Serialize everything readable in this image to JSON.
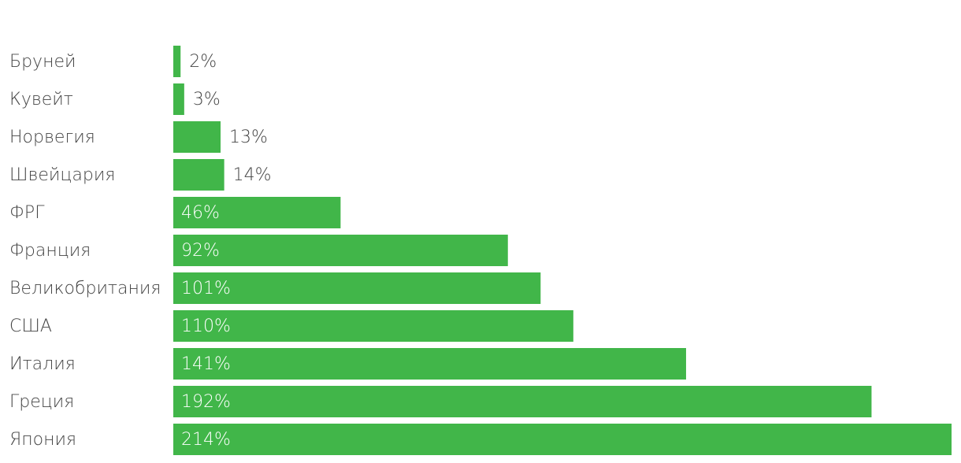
{
  "chart_data": {
    "type": "bar",
    "orientation": "horizontal",
    "categories": [
      "Бруней",
      "Кувейт",
      "Норвегия",
      "Швейцария",
      "ФРГ",
      "Франция",
      "Великобритания",
      "США",
      "Италия",
      "Греция",
      "Япония"
    ],
    "values": [
      2,
      3,
      13,
      14,
      46,
      92,
      101,
      110,
      141,
      192,
      214
    ],
    "value_labels": [
      "2%",
      "3%",
      "13%",
      "14%",
      "46%",
      "92%",
      "101%",
      "110%",
      "141%",
      "192%",
      "214%"
    ],
    "color": "#41b649"
  }
}
